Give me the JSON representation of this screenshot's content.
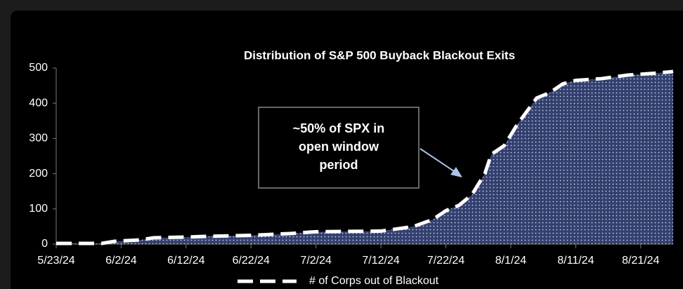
{
  "chart_data": {
    "type": "area",
    "title": "Distribution of S&P 500 Buyback Blackout Exits",
    "annotation": "~50% of SPX in open window period",
    "x": [
      "5/23/24",
      "5/30/24",
      "6/1/24",
      "6/5/24",
      "6/7/24",
      "6/12/24",
      "6/15/24",
      "6/22/24",
      "6/28/24",
      "7/2/24",
      "7/7/24",
      "7/12/24",
      "7/14/24",
      "7/17/24",
      "7/20/24",
      "7/22/24",
      "7/24/24",
      "7/26/24",
      "7/28/24",
      "7/29/24",
      "7/31/24",
      "8/2/24",
      "8/5/24",
      "8/7/24",
      "8/9/24",
      "8/11/24",
      "8/15/24",
      "8/19/24",
      "8/23/24",
      "8/26/24"
    ],
    "series": [
      {
        "name": "# of Corps out of Blackout",
        "color": "#ffffff",
        "fill": "#33406e",
        "values": [
          2,
          2,
          8,
          12,
          18,
          20,
          22,
          25,
          30,
          35,
          36,
          37,
          42,
          50,
          70,
          95,
          110,
          140,
          200,
          255,
          280,
          340,
          415,
          430,
          455,
          465,
          470,
          480,
          485,
          490
        ]
      }
    ],
    "xlim": [
      "5/23/24",
      "8/26/24"
    ],
    "xticks": [
      "5/23/24",
      "6/2/24",
      "6/12/24",
      "6/22/24",
      "7/2/24",
      "7/12/24",
      "7/22/24",
      "8/1/24",
      "8/11/24",
      "8/21/24"
    ],
    "ylim": [
      0,
      500
    ],
    "yticks": [
      0,
      100,
      200,
      300,
      400,
      500
    ],
    "grid": false,
    "legend": "bottom"
  }
}
